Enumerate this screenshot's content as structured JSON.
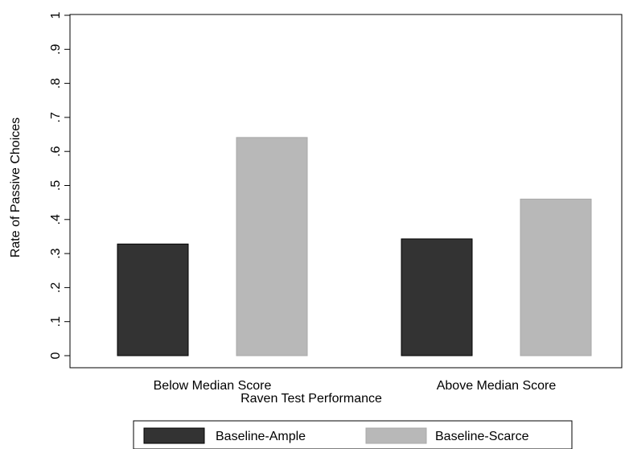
{
  "chart_data": {
    "type": "bar",
    "categories": [
      "Below Median Score",
      "Above Median Score"
    ],
    "series": [
      {
        "name": "Baseline-Ample",
        "values": [
          0.328,
          0.343
        ],
        "color": "#333333"
      },
      {
        "name": "Baseline-Scarce",
        "values": [
          0.641,
          0.46
        ],
        "color": "#b8b8b8"
      }
    ],
    "xlabel": "Raven Test Performance",
    "ylabel": "Rate of Passive Choices",
    "ylim": [
      0,
      1
    ],
    "yticks": [
      0,
      0.1,
      0.2,
      0.3,
      0.4,
      0.5,
      0.6,
      0.7,
      0.8,
      0.9,
      1
    ],
    "ytick_labels": [
      "0",
      ".1",
      ".2",
      ".3",
      ".4",
      ".5",
      ".6",
      ".7",
      ".8",
      ".9",
      "1"
    ],
    "legend_position": "bottom",
    "grid": false
  }
}
